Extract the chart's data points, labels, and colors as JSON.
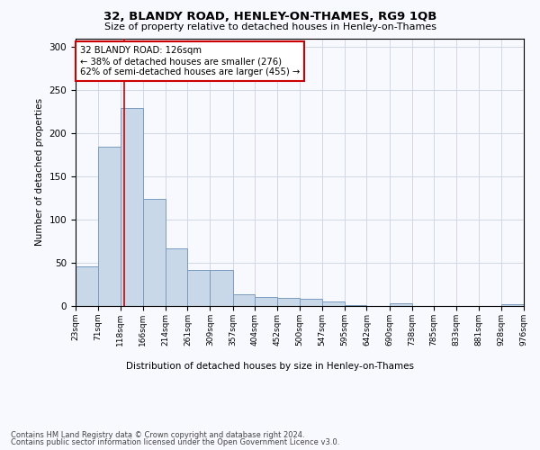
{
  "title1": "32, BLANDY ROAD, HENLEY-ON-THAMES, RG9 1QB",
  "title2": "Size of property relative to detached houses in Henley-on-Thames",
  "xlabel": "Distribution of detached houses by size in Henley-on-Thames",
  "ylabel": "Number of detached properties",
  "annotation_line1": "32 BLANDY ROAD: 126sqm",
  "annotation_line2": "← 38% of detached houses are smaller (276)",
  "annotation_line3": "62% of semi-detached houses are larger (455) →",
  "footer1": "Contains HM Land Registry data © Crown copyright and database right 2024.",
  "footer2": "Contains public sector information licensed under the Open Government Licence v3.0.",
  "property_size": 126,
  "bin_edges": [
    23,
    71,
    118,
    166,
    214,
    261,
    309,
    357,
    404,
    452,
    500,
    547,
    595,
    642,
    690,
    738,
    785,
    833,
    881,
    928,
    976
  ],
  "bar_heights": [
    46,
    184,
    229,
    124,
    67,
    42,
    42,
    14,
    10,
    9,
    8,
    5,
    1,
    0,
    3,
    0,
    0,
    0,
    0,
    2
  ],
  "bar_color": "#c8d8e8",
  "bar_edge_color": "#7a9cbf",
  "red_line_color": "#cc0000",
  "grid_color": "#d0d8e8",
  "background_color": "#f8f9ff",
  "annotation_box_color": "#ffffff",
  "annotation_box_edge": "#cc0000",
  "ylim": [
    0,
    310
  ],
  "yticks": [
    0,
    50,
    100,
    150,
    200,
    250,
    300
  ]
}
